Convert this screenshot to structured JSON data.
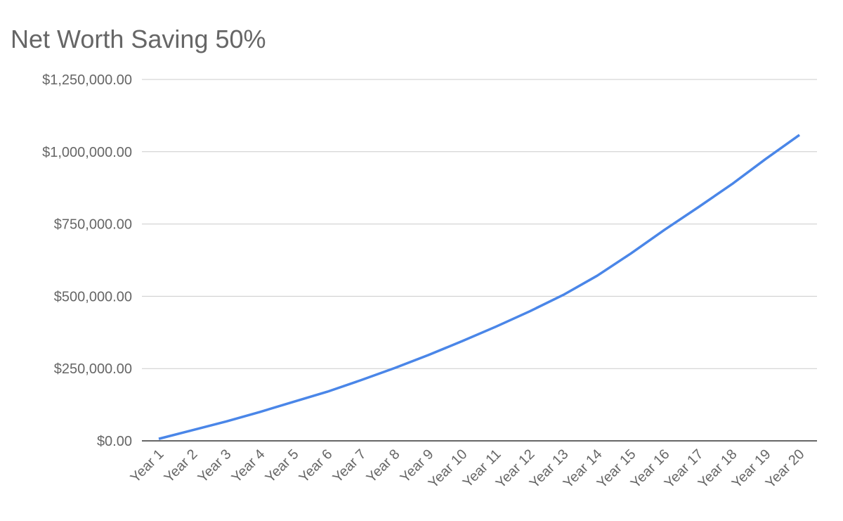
{
  "chart_data": {
    "type": "line",
    "title": "Net Worth Saving 50%",
    "categories": [
      "Year 1",
      "Year 2",
      "Year 3",
      "Year 4",
      "Year 5",
      "Year 6",
      "Year 7",
      "Year 8",
      "Year 9",
      "Year 10",
      "Year 11",
      "Year 12",
      "Year 13",
      "Year 14",
      "Year 15",
      "Year 16",
      "Year 17",
      "Year 18",
      "Year 19",
      "Year 20"
    ],
    "values": [
      7000,
      37000,
      67000,
      100000,
      135000,
      170000,
      210000,
      252000,
      297000,
      345000,
      395000,
      448000,
      505000,
      571000,
      648000,
      730000,
      808000,
      888000,
      975000,
      1058000
    ],
    "color": "#4a86e8",
    "ylim": [
      0,
      1250000
    ],
    "yticks": [
      {
        "value": 0,
        "label": "$0.00"
      },
      {
        "value": 250000,
        "label": "$250,000.00"
      },
      {
        "value": 500000,
        "label": "$500,000.00"
      },
      {
        "value": 750000,
        "label": "$750,000.00"
      },
      {
        "value": 1000000,
        "label": "$1,000,000.00"
      },
      {
        "value": 1250000,
        "label": "$1,250,000.00"
      }
    ],
    "grid": true
  }
}
